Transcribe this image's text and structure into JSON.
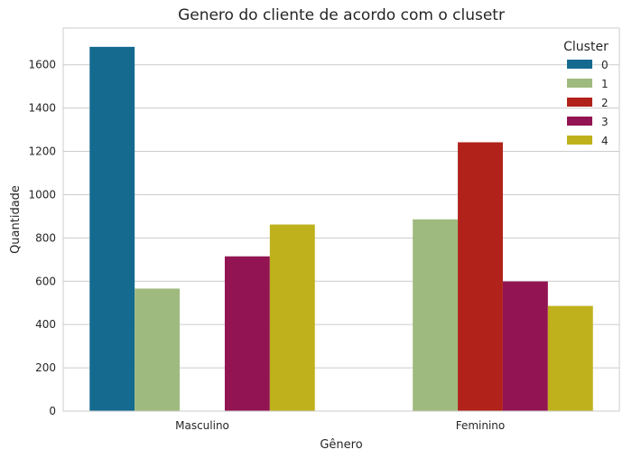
{
  "chart_data": {
    "type": "bar",
    "title": "Genero do cliente de acordo com o clusetr",
    "xlabel": "Gênero",
    "ylabel": "Quantidade",
    "categories": [
      "Masculino",
      "Feminino"
    ],
    "ylim": [
      0,
      1770
    ],
    "yticks": [
      0,
      200,
      400,
      600,
      800,
      1000,
      1200,
      1400,
      1600
    ],
    "grid": true,
    "legend": {
      "title": "Cluster",
      "placement": "top-right"
    },
    "series": [
      {
        "name": "0",
        "color": "#156A8F",
        "values": [
          1683,
          0
        ]
      },
      {
        "name": "1",
        "color": "#9FBA7E",
        "values": [
          566,
          886
        ]
      },
      {
        "name": "2",
        "color": "#B1221B",
        "values": [
          0,
          1242
        ]
      },
      {
        "name": "3",
        "color": "#931452",
        "values": [
          715,
          599
        ]
      },
      {
        "name": "4",
        "color": "#BFB11C",
        "values": [
          862,
          486
        ]
      }
    ]
  }
}
